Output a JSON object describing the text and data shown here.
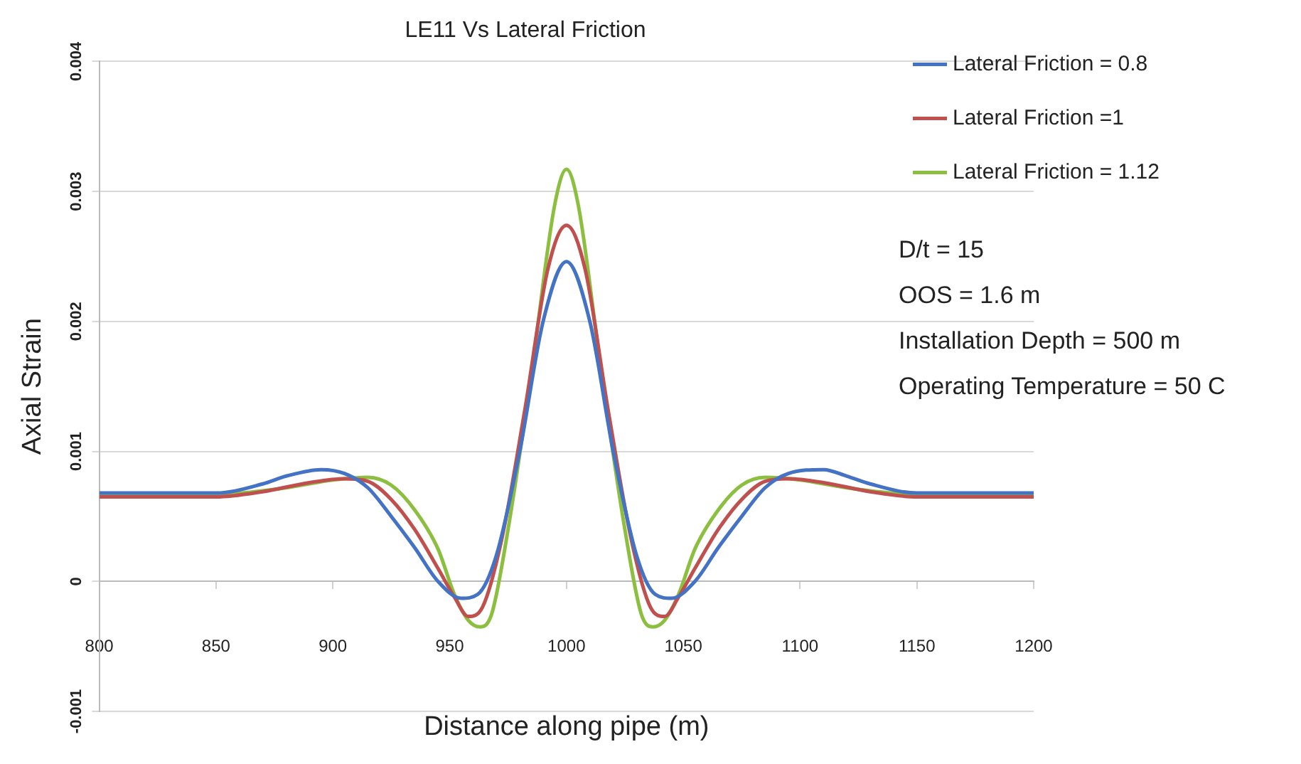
{
  "chart_data": {
    "type": "line",
    "title": "LE11 Vs Lateral Friction",
    "xlabel": "Distance along pipe (m)",
    "ylabel": "Axial Strain",
    "xlim": [
      800,
      1200
    ],
    "xticks": [
      800,
      850,
      900,
      950,
      1000,
      1050,
      1100,
      1150,
      1200
    ],
    "ylim": [
      -0.001,
      0.004
    ],
    "yticks": [
      -0.001,
      0,
      0.001,
      0.002,
      0.003,
      0.004
    ],
    "grid": "y",
    "legend": "top right",
    "marker": "none",
    "line_style": "solid",
    "annotations": [
      "D/t = 15",
      "OOS = 1.6 m",
      "Installation Depth = 500 m",
      "Operating Temperature = 50 C"
    ],
    "series": [
      {
        "name": "Lateral Friction = 0.8",
        "color": "#4472c4",
        "x": [
          800,
          850,
          870,
          880,
          895,
          905,
          915,
          925,
          935,
          945,
          955,
          962,
          970,
          980,
          990,
          1000,
          1010,
          1020,
          1030,
          1038,
          1045,
          1055,
          1065,
          1075,
          1085,
          1095,
          1110,
          1120,
          1130,
          1150,
          1200
        ],
        "values": [
          0.00068,
          0.00068,
          0.00075,
          0.00081,
          0.00086,
          0.00083,
          0.00072,
          0.0005,
          0.00026,
          0,
          -0.00013,
          -0.0001,
          0.0002,
          0.001,
          0.002,
          0.00246,
          0.002,
          0.001,
          0.0002,
          -0.0001,
          -0.00013,
          0,
          0.00026,
          0.0005,
          0.00072,
          0.00083,
          0.00086,
          0.00081,
          0.00075,
          0.00068,
          0.00068
        ]
      },
      {
        "name": "Lateral Friction =1",
        "color": "#c0504d",
        "x": [
          800,
          850,
          870,
          890,
          905,
          915,
          925,
          935,
          945,
          952,
          958,
          964,
          972,
          982,
          992,
          1000,
          1008,
          1018,
          1028,
          1036,
          1042,
          1048,
          1055,
          1065,
          1075,
          1085,
          1095,
          1110,
          1130,
          1150,
          1200
        ],
        "values": [
          0.00065,
          0.00065,
          0.00069,
          0.00076,
          0.00079,
          0.00077,
          0.00063,
          0.0004,
          0.0001,
          -0.00012,
          -0.00027,
          -0.0002,
          0.0003,
          0.0013,
          0.0024,
          0.00274,
          0.0024,
          0.0013,
          0.0003,
          -0.0002,
          -0.00027,
          -0.00012,
          0.0001,
          0.0004,
          0.00063,
          0.00077,
          0.00079,
          0.00076,
          0.00069,
          0.00065,
          0.00065
        ]
      },
      {
        "name": "Lateral Friction = 1.12",
        "color": "#8cbf3f",
        "x": [
          800,
          850,
          880,
          900,
          915,
          925,
          935,
          945,
          952,
          958,
          963,
          968,
          975,
          985,
          995,
          1000,
          1005,
          1015,
          1025,
          1032,
          1037,
          1042,
          1048,
          1055,
          1065,
          1075,
          1085,
          1100,
          1120,
          1150,
          1200
        ],
        "values": [
          0.00067,
          0.00067,
          0.00072,
          0.00078,
          0.0008,
          0.00074,
          0.00055,
          0.00025,
          -0.0001,
          -0.0003,
          -0.00035,
          -0.00025,
          0.0004,
          0.0016,
          0.0029,
          0.00317,
          0.0029,
          0.0016,
          0.0004,
          -0.00025,
          -0.00035,
          -0.0003,
          -0.0001,
          0.00025,
          0.00055,
          0.00074,
          0.0008,
          0.00078,
          0.00072,
          0.00067,
          0.00067
        ]
      }
    ]
  }
}
